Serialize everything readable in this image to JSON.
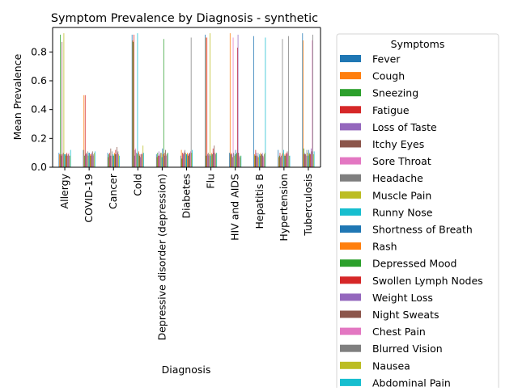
{
  "chart_data": {
    "type": "bar",
    "title": "Symptom Prevalence by Diagnosis - synthetic",
    "xlabel": "Diagnosis",
    "ylabel": "Mean Prevalence",
    "ylim": [
      0,
      0.97
    ],
    "yticks": [
      0.0,
      0.2,
      0.4,
      0.6,
      0.8
    ],
    "ytick_labels": [
      "0.0",
      "0.2",
      "0.4",
      "0.6",
      "0.8"
    ],
    "grid": false,
    "legend_title": "Symptoms",
    "legend_position": "right",
    "categories": [
      "Allergy",
      "COVID-19",
      "Cancer",
      "Cold",
      "Depressive disorder (depression)",
      "Diabetes",
      "Flu",
      "HIV and AIDS",
      "Hepatitis B",
      "Hypertension",
      "Tuberculosis"
    ],
    "series": [
      {
        "name": "Fever",
        "color": "#1f77b4",
        "values": [
          0.1,
          0.12,
          0.1,
          0.92,
          0.09,
          0.08,
          0.92,
          0.1,
          0.91,
          0.12,
          0.93
        ]
      },
      {
        "name": "Cough",
        "color": "#ff7f0e",
        "values": [
          0.09,
          0.5,
          0.07,
          0.88,
          0.07,
          0.12,
          0.9,
          0.93,
          0.09,
          0.07,
          0.88
        ]
      },
      {
        "name": "Sneezing",
        "color": "#2ca02c",
        "values": [
          0.92,
          0.08,
          0.09,
          0.87,
          0.1,
          0.06,
          0.08,
          0.09,
          0.08,
          0.08,
          0.13
        ]
      },
      {
        "name": "Fatigue",
        "color": "#d62728",
        "values": [
          0.09,
          0.5,
          0.1,
          0.92,
          0.08,
          0.1,
          0.9,
          0.1,
          0.12,
          0.1,
          0.09
        ]
      },
      {
        "name": "Loss of Taste",
        "color": "#9467bd",
        "values": [
          0.08,
          0.09,
          0.08,
          0.08,
          0.11,
          0.09,
          0.09,
          0.09,
          0.1,
          0.07,
          0.1
        ]
      },
      {
        "name": "Itchy Eyes",
        "color": "#8c564b",
        "values": [
          0.87,
          0.1,
          0.13,
          0.12,
          0.08,
          0.1,
          0.1,
          0.07,
          0.08,
          0.08,
          0.09
        ]
      },
      {
        "name": "Sore Throat",
        "color": "#e377c2",
        "values": [
          0.09,
          0.09,
          0.08,
          0.13,
          0.09,
          0.11,
          0.08,
          0.9,
          0.07,
          0.09,
          0.08
        ]
      },
      {
        "name": "Headache",
        "color": "#7f7f7f",
        "values": [
          0.1,
          0.11,
          0.11,
          0.1,
          0.1,
          0.12,
          0.09,
          0.1,
          0.1,
          0.89,
          0.12
        ]
      },
      {
        "name": "Muscle Pain",
        "color": "#bcbd22",
        "values": [
          0.93,
          0.08,
          0.08,
          0.09,
          0.1,
          0.1,
          0.93,
          0.08,
          0.07,
          0.1,
          0.1
        ]
      },
      {
        "name": "Runny Nose",
        "color": "#17becf",
        "values": [
          0.09,
          0.1,
          0.09,
          0.93,
          0.07,
          0.09,
          0.08,
          0.09,
          0.09,
          0.12,
          0.08
        ]
      },
      {
        "name": "Shortness of Breath",
        "color": "#1f77b4",
        "values": [
          0.09,
          0.1,
          0.08,
          0.1,
          0.13,
          0.09,
          0.09,
          0.12,
          0.08,
          0.08,
          0.12
        ]
      },
      {
        "name": "Rash",
        "color": "#ff7f0e",
        "values": [
          0.08,
          0.09,
          0.1,
          0.11,
          0.09,
          0.1,
          0.1,
          0.09,
          0.1,
          0.09,
          0.09
        ]
      },
      {
        "name": "Depressed Mood",
        "color": "#2ca02c",
        "values": [
          0.09,
          0.08,
          0.09,
          0.08,
          0.89,
          0.08,
          0.09,
          0.1,
          0.09,
          0.08,
          0.1
        ]
      },
      {
        "name": "Swollen Lymph Nodes",
        "color": "#d62728",
        "values": [
          0.1,
          0.09,
          0.12,
          0.09,
          0.1,
          0.09,
          0.13,
          0.83,
          0.09,
          0.1,
          0.09
        ]
      },
      {
        "name": "Weight Loss",
        "color": "#9467bd",
        "values": [
          0.08,
          0.1,
          0.09,
          0.07,
          0.08,
          0.1,
          0.1,
          0.92,
          0.1,
          0.09,
          0.13
        ]
      },
      {
        "name": "Night Sweats",
        "color": "#8c564b",
        "values": [
          0.09,
          0.11,
          0.14,
          0.09,
          0.12,
          0.1,
          0.15,
          0.1,
          0.08,
          0.11,
          0.11
        ]
      },
      {
        "name": "Chest Pain",
        "color": "#e377c2",
        "values": [
          0.1,
          0.08,
          0.1,
          0.1,
          0.08,
          0.11,
          0.1,
          0.08,
          0.07,
          0.1,
          0.88
        ]
      },
      {
        "name": "Blurred Vision",
        "color": "#7f7f7f",
        "values": [
          0.08,
          0.09,
          0.11,
          0.09,
          0.09,
          0.9,
          0.09,
          0.07,
          0.09,
          0.91,
          0.92
        ]
      },
      {
        "name": "Nausea",
        "color": "#bcbd22",
        "values": [
          0.08,
          0.1,
          0.09,
          0.15,
          0.1,
          0.1,
          0.1,
          0.08,
          0.1,
          0.08,
          0.09
        ]
      },
      {
        "name": "Abdominal Pain",
        "color": "#17becf",
        "values": [
          0.12,
          0.11,
          0.08,
          0.1,
          0.1,
          0.12,
          0.1,
          0.08,
          0.9,
          0.08,
          0.11
        ]
      }
    ]
  }
}
